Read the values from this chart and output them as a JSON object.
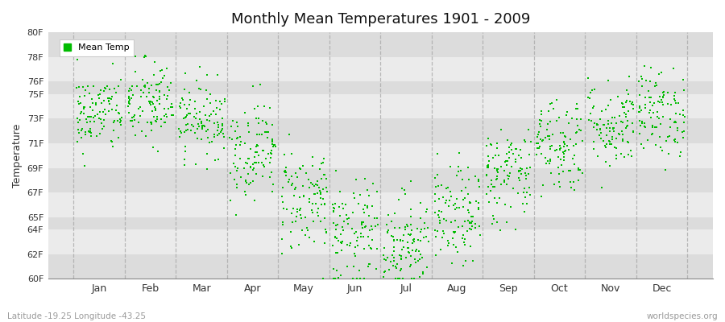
{
  "title": "Monthly Mean Temperatures 1901 - 2009",
  "ylabel": "Temperature",
  "xlabel_labels": [
    "Jan",
    "Feb",
    "Mar",
    "Apr",
    "May",
    "Jun",
    "Jul",
    "Aug",
    "Sep",
    "Oct",
    "Nov",
    "Dec"
  ],
  "footer_left": "Latitude -19.25 Longitude -43.25",
  "footer_right": "worldspecies.org",
  "ylim": [
    60,
    80
  ],
  "yticks": [
    60,
    62,
    64,
    65,
    67,
    69,
    71,
    73,
    75,
    76,
    78,
    80
  ],
  "ytick_labels": [
    "60F",
    "62F",
    "64F",
    "65F",
    "67F",
    "69F",
    "71F",
    "73F",
    "75F",
    "76F",
    "78F",
    "80F"
  ],
  "dot_color": "#00BB00",
  "dot_size": 3,
  "bg_bands": [
    "#DCDCDC",
    "#EBEBEB",
    "#DCDCDC",
    "#EBEBEB",
    "#DCDCDC",
    "#EBEBEB",
    "#DCDCDC",
    "#EBEBEB",
    "#DCDCDC",
    "#EBEBEB",
    "#DCDCDC"
  ],
  "dashed_line_color": "#AAAAAA",
  "legend_label": "Mean Temp",
  "monthly_means": [
    73.4,
    74.2,
    73.0,
    70.5,
    66.5,
    63.5,
    63.0,
    65.0,
    68.5,
    71.0,
    72.5,
    73.5
  ],
  "monthly_stds": [
    1.6,
    1.8,
    1.5,
    2.0,
    2.2,
    2.2,
    2.0,
    2.0,
    2.0,
    2.0,
    1.8,
    1.8
  ],
  "n_years": 109,
  "seed": 42,
  "figsize": [
    9.0,
    4.0
  ],
  "dpi": 100
}
